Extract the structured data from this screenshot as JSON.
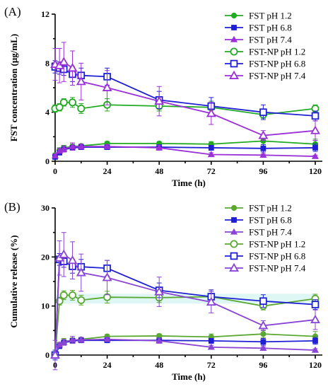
{
  "chart_data": [
    {
      "type": "line",
      "panel_label": "(A)",
      "xlabel": "Time (h)",
      "ylabel": "FST concentration (μg/mL)",
      "xlim": [
        0,
        120
      ],
      "ylim": [
        0,
        12
      ],
      "x_ticks": [
        0,
        24,
        48,
        72,
        96,
        120
      ],
      "y_ticks": [
        0,
        4,
        8,
        12
      ],
      "legend_position": "top-right",
      "series": [
        {
          "name": "FST pH 1.2",
          "color": "#22aa22",
          "marker": "filled-circle",
          "x": [
            0,
            2,
            4,
            8,
            12,
            24,
            48,
            72,
            96,
            120
          ],
          "y": [
            0.5,
            0.9,
            1.1,
            1.2,
            1.25,
            1.45,
            1.45,
            1.4,
            1.65,
            1.4
          ],
          "err": [
            0.15,
            0.2,
            0.2,
            0.2,
            0.15,
            0.15,
            0.15,
            0.2,
            0.3,
            0.4
          ]
        },
        {
          "name": "FST pH 6.8",
          "color": "#1f1fd6",
          "marker": "filled-square",
          "x": [
            0,
            2,
            4,
            8,
            12,
            24,
            48,
            72,
            96,
            120
          ],
          "y": [
            0.35,
            0.7,
            0.95,
            1.1,
            1.15,
            1.15,
            1.15,
            1.1,
            1.05,
            1.1
          ],
          "err": [
            0.1,
            0.15,
            0.15,
            0.15,
            0.15,
            0.15,
            0.15,
            0.2,
            0.3,
            0.3
          ]
        },
        {
          "name": "FST pH 7.4",
          "color": "#9b30d9",
          "marker": "filled-triangle",
          "x": [
            0,
            2,
            4,
            8,
            12,
            24,
            48,
            72,
            96,
            120
          ],
          "y": [
            0.45,
            0.85,
            1.0,
            1.2,
            1.2,
            1.2,
            1.1,
            0.55,
            0.5,
            0.4
          ],
          "err": [
            0.15,
            0.2,
            0.25,
            0.3,
            0.2,
            0.15,
            0.2,
            0.15,
            0.1,
            0.1
          ]
        },
        {
          "name": "FST-NP pH 1.2",
          "color": "#22aa22",
          "marker": "open-circle",
          "x": [
            0,
            2,
            4,
            8,
            12,
            24,
            48,
            72,
            96,
            120
          ],
          "y": [
            4.3,
            4.4,
            4.8,
            4.8,
            4.3,
            4.6,
            4.5,
            4.4,
            3.8,
            4.3
          ],
          "err": [
            0.3,
            0.3,
            0.3,
            0.4,
            0.4,
            0.5,
            0.4,
            0.5,
            0.3,
            0.3
          ]
        },
        {
          "name": "FST-NP pH 6.8",
          "color": "#1f1fd6",
          "marker": "open-square",
          "x": [
            0,
            2,
            4,
            8,
            12,
            24,
            48,
            72,
            96,
            120
          ],
          "y": [
            7.7,
            7.6,
            7.5,
            7.1,
            7.0,
            6.9,
            5.0,
            4.5,
            4.0,
            3.7
          ],
          "err": [
            0.5,
            0.5,
            0.5,
            0.6,
            0.6,
            0.7,
            0.7,
            0.7,
            0.6,
            0.4
          ]
        },
        {
          "name": "FST-NP pH 7.4",
          "color": "#9b30d9",
          "marker": "open-triangle",
          "x": [
            0,
            2,
            4,
            8,
            12,
            24,
            48,
            72,
            96,
            120
          ],
          "y": [
            7.9,
            7.8,
            8.1,
            7.6,
            6.5,
            6.0,
            4.9,
            3.9,
            2.1,
            2.5
          ],
          "err": [
            1.3,
            1.4,
            1.6,
            1.4,
            1.5,
            1.4,
            1.2,
            0.9,
            0.4,
            0.8
          ]
        }
      ]
    },
    {
      "type": "line",
      "panel_label": "(B)",
      "xlabel": "Time (h)",
      "ylabel": "Cumulative release (%)",
      "xlim": [
        0,
        120
      ],
      "ylim": [
        0,
        30
      ],
      "x_ticks": [
        0,
        24,
        48,
        72,
        96,
        120
      ],
      "y_ticks": [
        0,
        10,
        20,
        30
      ],
      "legend_position": "top-right",
      "series": [
        {
          "name": "FST pH 1.2",
          "color": "#5aa832",
          "marker": "filled-circle",
          "x": [
            0,
            2,
            4,
            8,
            12,
            24,
            48,
            72,
            96,
            120
          ],
          "y": [
            0,
            2.0,
            2.8,
            3.0,
            3.2,
            3.8,
            3.9,
            3.7,
            4.3,
            3.8
          ],
          "err": [
            0.3,
            0.5,
            0.6,
            0.5,
            0.4,
            0.4,
            0.4,
            0.6,
            0.8,
            1.0
          ]
        },
        {
          "name": "FST pH 6.8",
          "color": "#1f1fd6",
          "marker": "filled-square",
          "x": [
            0,
            2,
            4,
            8,
            12,
            24,
            48,
            72,
            96,
            120
          ],
          "y": [
            0,
            1.8,
            2.5,
            2.9,
            3.0,
            3.0,
            3.0,
            2.9,
            2.7,
            2.9
          ],
          "err": [
            0.2,
            0.4,
            0.4,
            0.4,
            0.4,
            0.4,
            0.4,
            0.5,
            0.7,
            0.7
          ]
        },
        {
          "name": "FST pH 7.4",
          "color": "#8a44d6",
          "marker": "filled-triangle",
          "x": [
            0,
            2,
            4,
            8,
            12,
            24,
            48,
            72,
            96,
            120
          ],
          "y": [
            0,
            2.1,
            2.6,
            3.1,
            3.1,
            3.2,
            2.9,
            1.6,
            1.4,
            1.0
          ],
          "err": [
            0.3,
            0.5,
            0.6,
            0.7,
            0.5,
            0.4,
            0.5,
            0.4,
            0.3,
            0.3
          ]
        },
        {
          "name": "FST-NP pH 1.2",
          "color": "#5aa832",
          "marker": "open-circle",
          "x": [
            0,
            2,
            4,
            8,
            12,
            24,
            48,
            72,
            96,
            120
          ],
          "y": [
            0,
            11.0,
            12.2,
            12.2,
            11.2,
            11.8,
            11.7,
            11.9,
            10.0,
            11.5
          ],
          "err": [
            0.5,
            0.8,
            0.9,
            1.0,
            1.0,
            1.2,
            1.0,
            1.1,
            0.8,
            0.9
          ]
        },
        {
          "name": "FST-NP pH 6.8",
          "color": "#1f1fd6",
          "marker": "open-square",
          "x": [
            0,
            2,
            4,
            8,
            12,
            24,
            48,
            72,
            96,
            120
          ],
          "y": [
            0,
            19.5,
            19.1,
            18.1,
            18.0,
            17.7,
            13.2,
            11.9,
            11.0,
            10.3
          ],
          "err": [
            1.0,
            1.2,
            1.2,
            1.4,
            1.5,
            1.6,
            1.5,
            1.4,
            1.3,
            1.0
          ]
        },
        {
          "name": "FST-NP pH 7.4",
          "color": "#8a44d6",
          "marker": "open-triangle",
          "x": [
            0,
            2,
            4,
            8,
            12,
            24,
            48,
            72,
            96,
            120
          ],
          "y": [
            0,
            19.8,
            20.5,
            19.3,
            16.8,
            15.8,
            12.9,
            10.8,
            6.0,
            7.2
          ],
          "err": [
            3.0,
            3.5,
            4.5,
            3.8,
            3.8,
            3.5,
            3.0,
            2.2,
            1.0,
            2.0
          ]
        }
      ]
    }
  ]
}
